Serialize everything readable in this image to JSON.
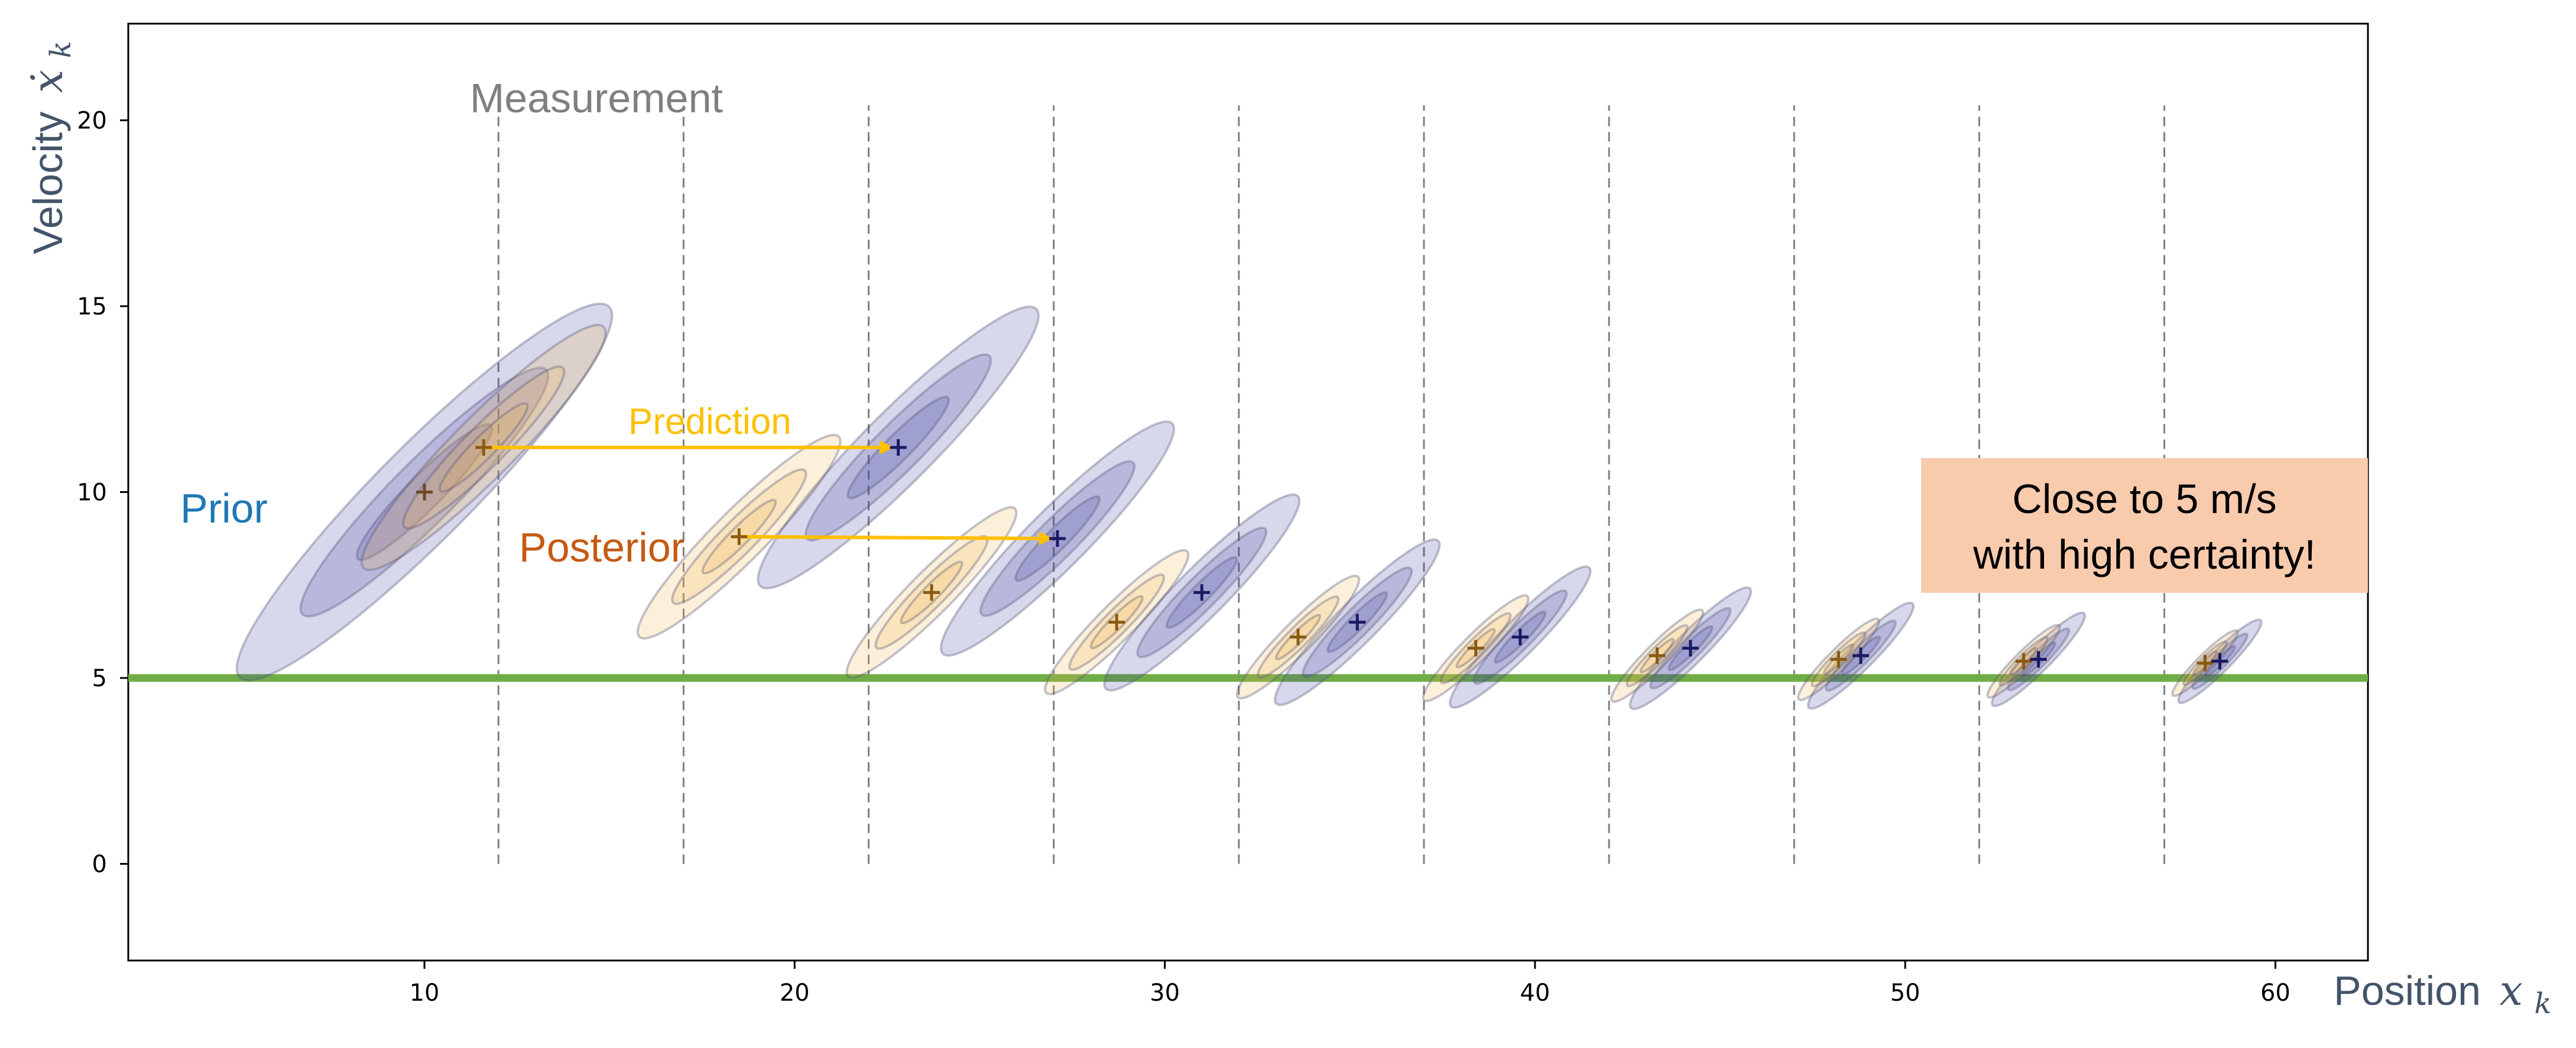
{
  "chart_data": {
    "type": "scatter",
    "xlabel": "Position",
    "xlabel_symbol": "x",
    "xlabel_subscript": "k",
    "ylabel": "Velocity",
    "ylabel_symbol": "ẋ",
    "ylabel_subscript": "k",
    "xlim": [
      2,
      62.5
    ],
    "ylim": [
      -2.6,
      22.6
    ],
    "x_ticks": [
      10,
      20,
      30,
      40,
      50,
      60
    ],
    "y_ticks": [
      0,
      5,
      10,
      15,
      20
    ],
    "grid": false,
    "true_velocity": 5,
    "measurement_x": [
      12,
      17,
      22,
      27,
      32,
      37,
      42,
      47,
      52,
      57
    ],
    "measurement_y_range": [
      0,
      20.4
    ],
    "prior": {
      "x": 10,
      "y": 10
    },
    "posterior": [
      {
        "x": 11.6,
        "y": 11.2
      },
      {
        "x": 18.5,
        "y": 8.8
      },
      {
        "x": 23.7,
        "y": 7.3
      },
      {
        "x": 28.7,
        "y": 6.5
      },
      {
        "x": 33.6,
        "y": 6.1
      },
      {
        "x": 38.4,
        "y": 5.8
      },
      {
        "x": 43.3,
        "y": 5.6
      },
      {
        "x": 48.2,
        "y": 5.5
      },
      {
        "x": 53.2,
        "y": 5.45
      },
      {
        "x": 58.1,
        "y": 5.4
      }
    ],
    "prediction": [
      {
        "x": 22.8,
        "y": 11.2
      },
      {
        "x": 27.1,
        "y": 8.75
      },
      {
        "x": 31.0,
        "y": 7.3
      },
      {
        "x": 35.2,
        "y": 6.5
      },
      {
        "x": 39.6,
        "y": 6.1
      },
      {
        "x": 44.2,
        "y": 5.8
      },
      {
        "x": 48.8,
        "y": 5.6
      },
      {
        "x": 53.6,
        "y": 5.5
      },
      {
        "x": 58.5,
        "y": 5.45
      }
    ],
    "prediction_arrows": [
      {
        "from": [
          11.6,
          11.2
        ],
        "to": [
          22.8,
          11.2
        ]
      },
      {
        "from": [
          18.5,
          8.8
        ],
        "to": [
          27.1,
          8.75
        ]
      }
    ],
    "annotations": {
      "measurement": "Measurement",
      "prediction": "Prediction",
      "prior": "Prior",
      "posterior": "Posterior",
      "callout_line1": "Close to 5 m/s",
      "callout_line2": "with high certainty!"
    },
    "colors": {
      "prior_fill": "#3c3ca0",
      "posterior_fill": "#f2b64a",
      "prior_text": "#1f77b4",
      "posterior_text": "#c55a11",
      "prediction_text": "#ffc000",
      "measurement": "#7f7f7f",
      "truth_line": "#70ad47",
      "callout_bg": "#f8cbad",
      "axis_label": "#44546a"
    }
  }
}
